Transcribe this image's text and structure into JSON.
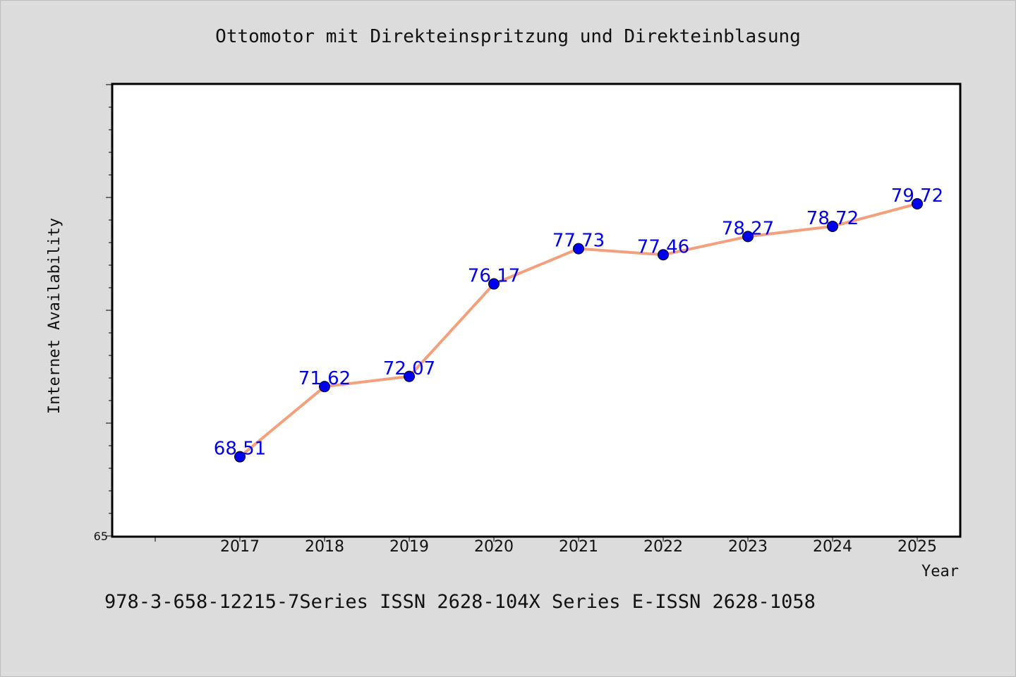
{
  "chart_data": {
    "type": "line",
    "title": "Ottomotor mit Direkteinspritzung und Direkteinblasung",
    "xlabel": "Year",
    "ylabel": "Internet Availability",
    "categories": [
      "2017",
      "2018",
      "2019",
      "2020",
      "2021",
      "2022",
      "2023",
      "2024",
      "2025"
    ],
    "values": [
      68.51,
      71.62,
      72.07,
      76.17,
      77.73,
      77.46,
      78.27,
      78.72,
      79.72
    ],
    "value_labels": [
      "68.51",
      "71.62",
      "72.07",
      "76.17",
      "77.73",
      "77.46",
      "78.27",
      "78.72",
      "79.72"
    ],
    "ylim": [
      65,
      85
    ],
    "y_tick_label": "65",
    "grid": false,
    "line_color": "#f4a07c",
    "marker_color": "#0000ee",
    "label_color": "#0000ee"
  },
  "footer": {
    "text": "978-3-658-12215-7Series ISSN 2628-104X Series E-ISSN 2628-1058"
  }
}
